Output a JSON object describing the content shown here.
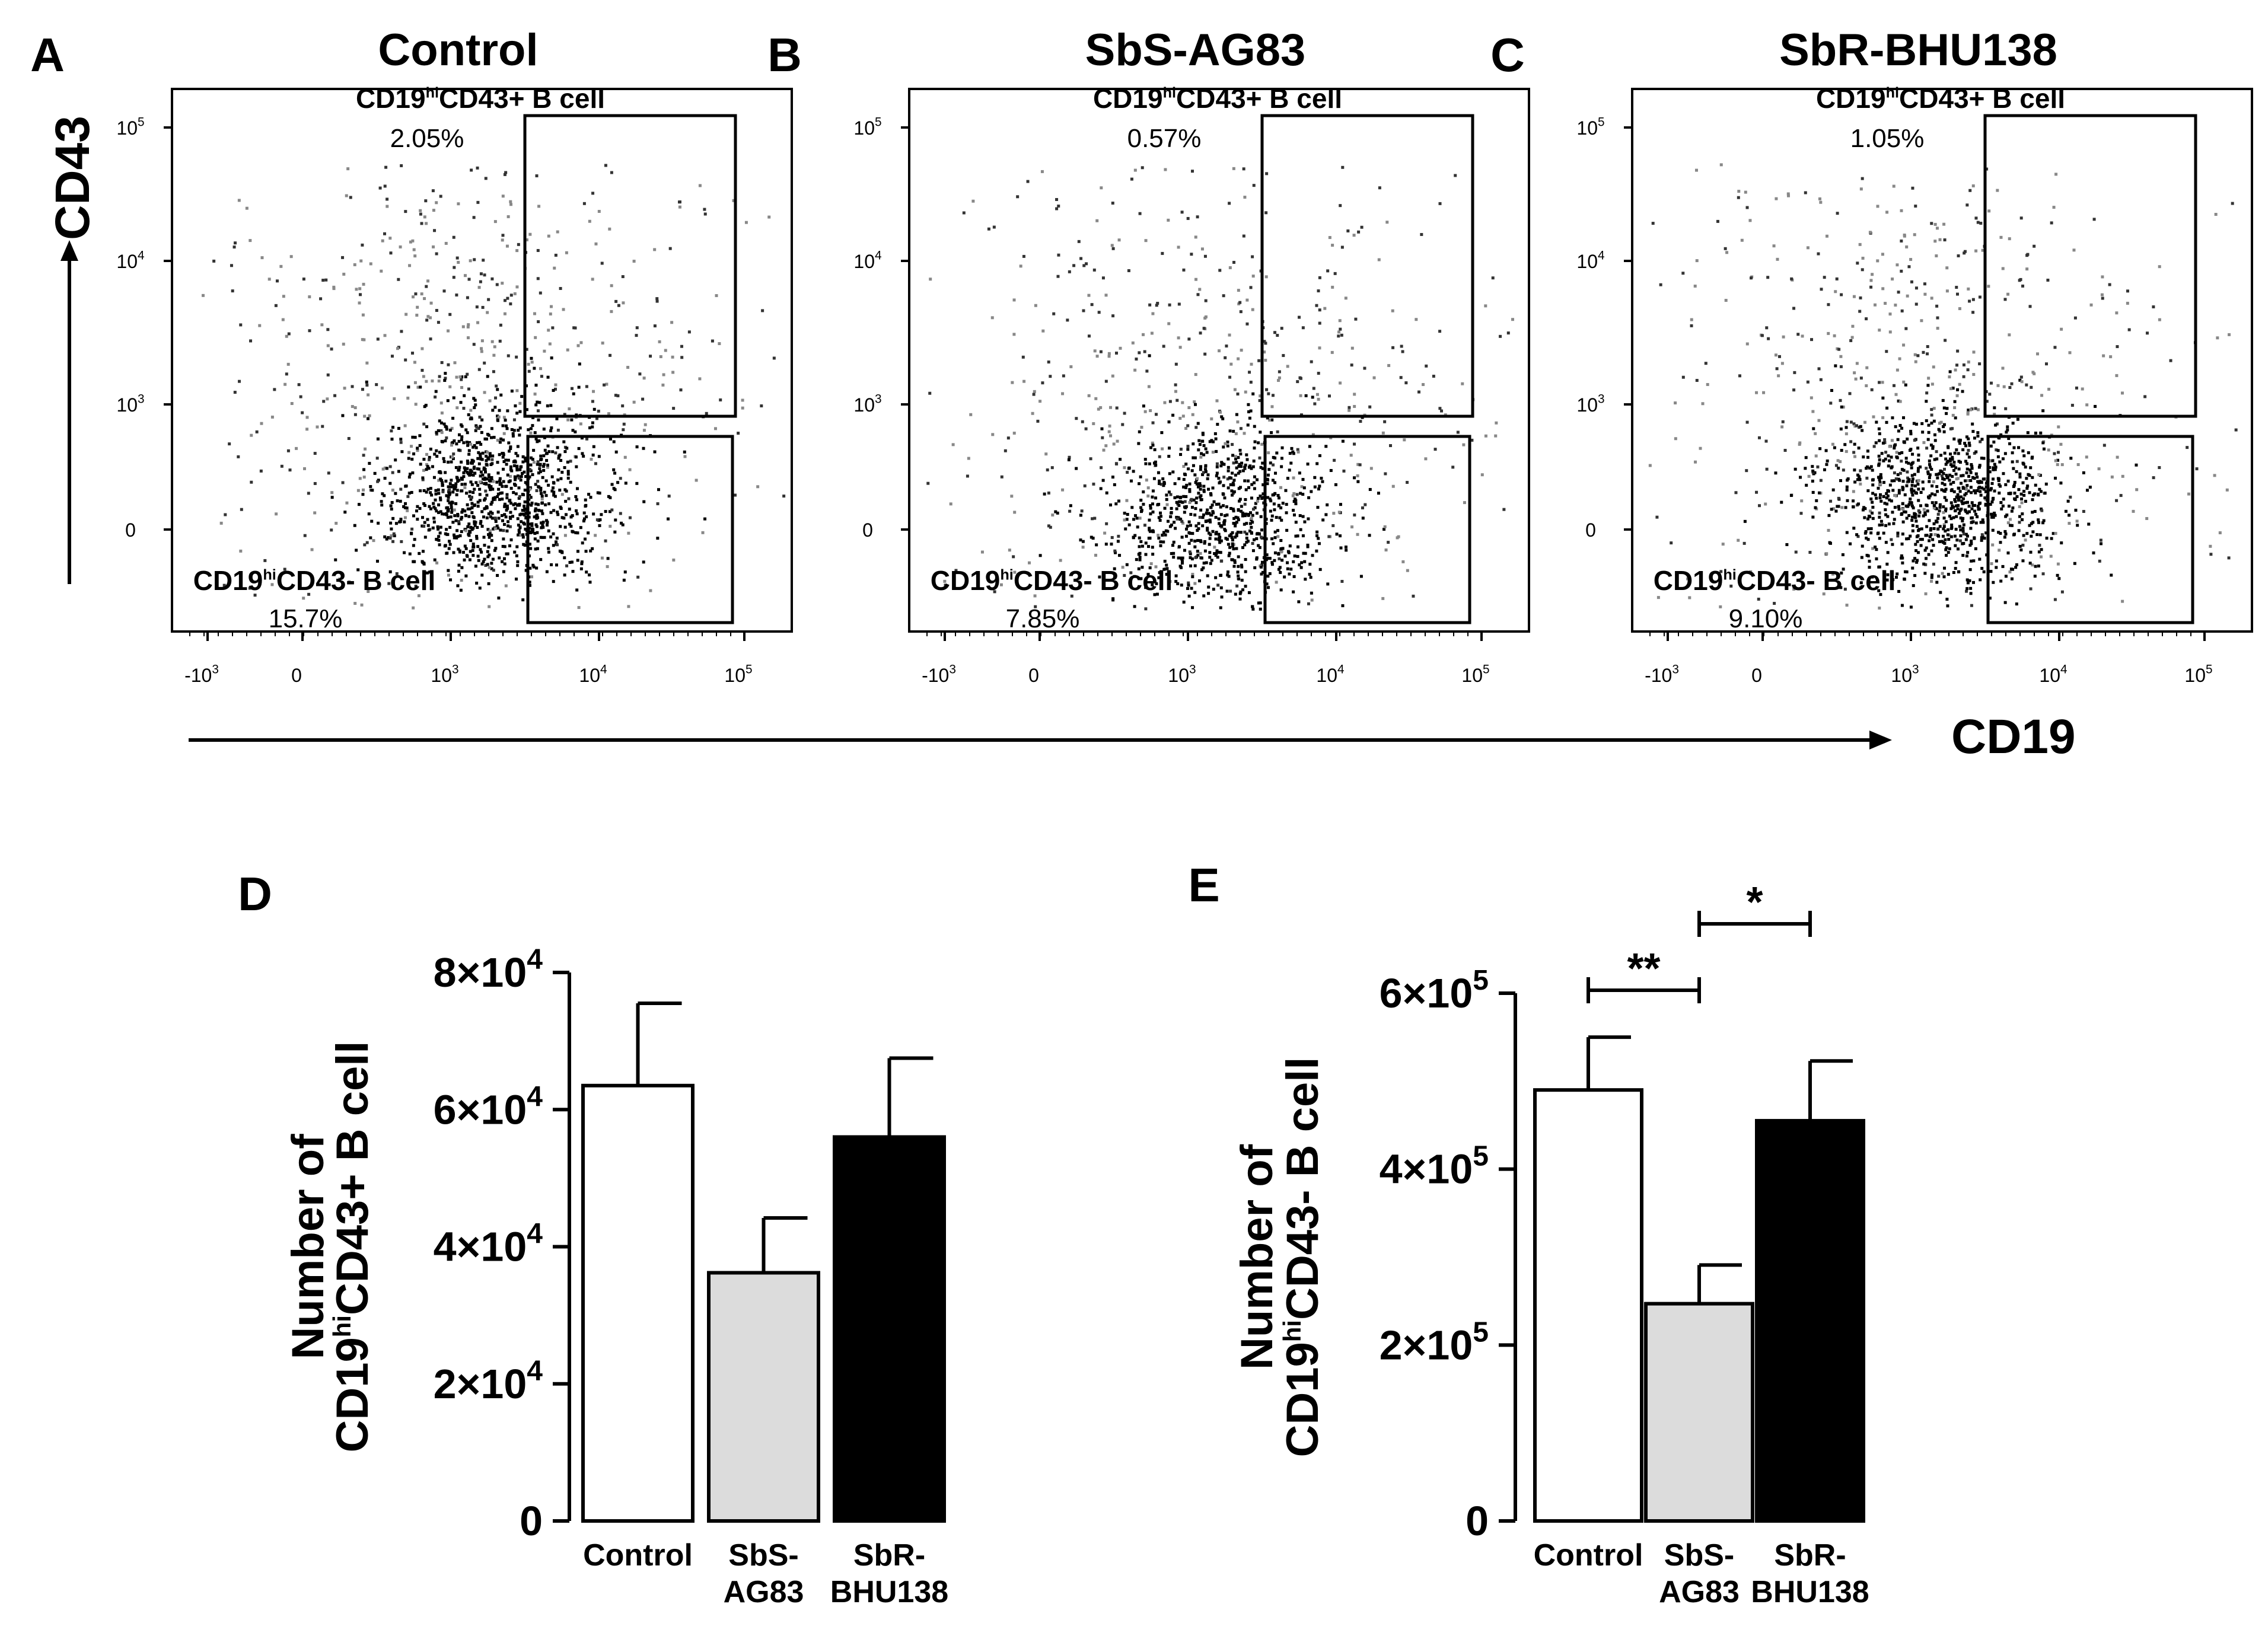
{
  "chart_data": [
    {
      "panel": "A",
      "type": "scatter",
      "title": "Control",
      "xlabel": "CD19",
      "ylabel": "CD43",
      "x_ticks": [
        "-10^3",
        "0",
        "10^3",
        "10^4",
        "10^5"
      ],
      "y_ticks": [
        "0",
        "10^3",
        "10^4",
        "10^5"
      ],
      "gates": [
        {
          "label_main": "CD19",
          "label_sup": "hi",
          "label_tail": "CD43+ B cell",
          "percent": "2.05%"
        },
        {
          "label_main": "CD19",
          "label_sup": "hi",
          "label_tail": "CD43- B cell",
          "percent": "15.7%"
        }
      ]
    },
    {
      "panel": "B",
      "type": "scatter",
      "title": "SbS-AG83",
      "xlabel": "CD19",
      "ylabel": "CD43",
      "x_ticks": [
        "-10^3",
        "0",
        "10^3",
        "10^4",
        "10^5"
      ],
      "y_ticks": [
        "0",
        "10^3",
        "10^4",
        "10^5"
      ],
      "gates": [
        {
          "label_main": "CD19",
          "label_sup": "hi",
          "label_tail": "CD43+ B cell",
          "percent": "0.57%"
        },
        {
          "label_main": "CD19",
          "label_sup": "hi",
          "label_tail": "CD43- B cell",
          "percent": "7.85%"
        }
      ]
    },
    {
      "panel": "C",
      "type": "scatter",
      "title": "SbR-BHU138",
      "xlabel": "CD19",
      "ylabel": "CD43",
      "x_ticks": [
        "-10^3",
        "0",
        "10^3",
        "10^4",
        "10^5"
      ],
      "y_ticks": [
        "0",
        "10^3",
        "10^4",
        "10^5"
      ],
      "gates": [
        {
          "label_main": "CD19",
          "label_sup": "hi",
          "label_tail": "CD43+ B cell",
          "percent": "1.05%"
        },
        {
          "label_main": "CD19",
          "label_sup": "hi",
          "label_tail": "CD43- B cell",
          "percent": "9.10%"
        }
      ]
    },
    {
      "panel": "D",
      "type": "bar",
      "categories": [
        [
          "Control"
        ],
        [
          "SbS-",
          "AG83"
        ],
        [
          "SbR-",
          "BHU138"
        ]
      ],
      "values": [
        63500,
        36200,
        56000
      ],
      "errors": [
        12000,
        8000,
        11500
      ],
      "colors": [
        "#ffffff",
        "#dcdcdc",
        "#000000"
      ],
      "ylabel_line1": "Number of",
      "ylabel_line2_main": "CD19",
      "ylabel_line2_sup": "hi",
      "ylabel_line2_tail": "CD43+ B cell",
      "ylim": [
        0,
        80000
      ],
      "y_ticks": [
        {
          "value": 0,
          "base": "0"
        },
        {
          "value": 20000,
          "base": "2×10",
          "exp": "4"
        },
        {
          "value": 40000,
          "base": "4×10",
          "exp": "4"
        },
        {
          "value": 60000,
          "base": "6×10",
          "exp": "4"
        },
        {
          "value": 80000,
          "base": "8×10",
          "exp": "4"
        }
      ],
      "significance": []
    },
    {
      "panel": "E",
      "type": "bar",
      "categories": [
        [
          "Control"
        ],
        [
          "SbS-",
          "AG83"
        ],
        [
          "SbR-",
          "BHU138"
        ]
      ],
      "values": [
        490000,
        247000,
        455000
      ],
      "errors": [
        60000,
        44000,
        68000
      ],
      "colors": [
        "#ffffff",
        "#dcdcdc",
        "#000000"
      ],
      "ylabel_line1": "Number of",
      "ylabel_line2_main": "CD19",
      "ylabel_line2_sup": "hi",
      "ylabel_line2_tail": "CD43- B cell",
      "ylim": [
        0,
        600000
      ],
      "y_ticks": [
        {
          "value": 0,
          "base": "0"
        },
        {
          "value": 200000,
          "base": "2×10",
          "exp": "5"
        },
        {
          "value": 400000,
          "base": "4×10",
          "exp": "5"
        },
        {
          "value": 600000,
          "base": "6×10",
          "exp": "5"
        }
      ],
      "significance": [
        {
          "from": 0,
          "to": 1,
          "label": "**"
        },
        {
          "from": 1,
          "to": 2,
          "label": "*"
        }
      ]
    }
  ],
  "axis_titles": {
    "cd43": "CD43",
    "cd19": "CD19"
  },
  "colors": {
    "ink": "#000000",
    "paper": "#ffffff",
    "grey_bar": "#dcdcdc"
  }
}
